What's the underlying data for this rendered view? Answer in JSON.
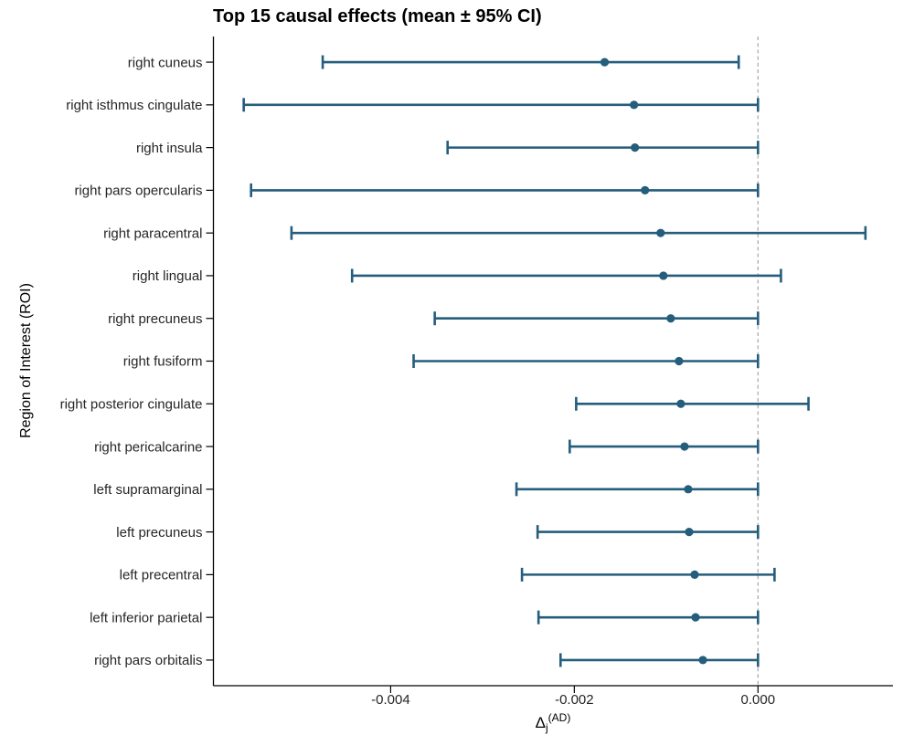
{
  "chart_data": {
    "type": "scatter",
    "variant": "horizontal-errorbar-forest-plot",
    "title": "Top 15 causal effects (mean ± 95% CI)",
    "ylabel": "Region of Interest (ROI)",
    "xlabel": {
      "base": "Δ",
      "sub": "j",
      "sup": "(AD)"
    },
    "categories": [
      "right cuneus",
      "right isthmus cingulate",
      "right insula",
      "right pars opercularis",
      "right paracentral",
      "right lingual",
      "right precuneus",
      "right fusiform",
      "right posterior cingulate",
      "right pericalcarine",
      "left supramarginal",
      "left precuneus",
      "left precentral",
      "left inferior parietal",
      "right pars orbitalis"
    ],
    "series": [
      {
        "name": "mean ± 95% CI",
        "means": [
          -0.00167,
          -0.00135,
          -0.00134,
          -0.00123,
          -0.00106,
          -0.00103,
          -0.00095,
          -0.00086,
          -0.00084,
          -0.0008,
          -0.00076,
          -0.00075,
          -0.00069,
          -0.00068,
          -0.0006
        ],
        "ci_low": [
          -0.00474,
          -0.0056,
          -0.00338,
          -0.00552,
          -0.00508,
          -0.00442,
          -0.00352,
          -0.00375,
          -0.00198,
          -0.00205,
          -0.00263,
          -0.0024,
          -0.00257,
          -0.00239,
          -0.00215
        ],
        "ci_high": [
          -0.00021,
          0.0,
          0.0,
          0.0,
          0.00117,
          0.00025,
          0.0,
          0.0,
          0.00055,
          0.0,
          0.0,
          0.0,
          0.00018,
          0.0,
          0.0
        ]
      }
    ],
    "xticks": {
      "values": [
        -0.004,
        -0.002,
        0.0
      ],
      "labels": [
        "-0.004",
        "-0.002",
        "0.000"
      ]
    },
    "xlim": [
      -0.00593,
      0.00147
    ],
    "zero_line": 0.0,
    "grid": false,
    "legend": false,
    "colors": {
      "point": "#255d7c",
      "errorbar": "#255d7c",
      "zero_line": "#a6a6a6",
      "axis": "#000000",
      "tick_text": "#262626",
      "title_text": "#000000"
    }
  }
}
